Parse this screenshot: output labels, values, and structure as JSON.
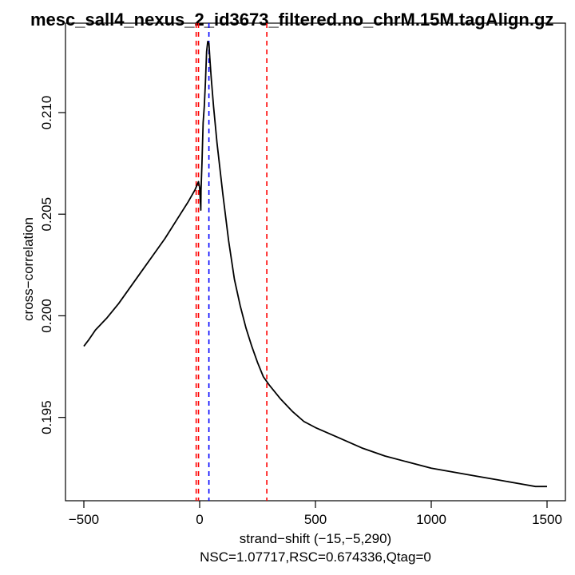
{
  "chart_data": {
    "type": "line",
    "title": "mesc_sall4_nexus_2_id3673_filtered.no_chrM.15M.tagAlign.gz",
    "xlabel": "strand−shift (−15,−5,290)",
    "ylabel": "cross−correlation",
    "subtitle": "NSC=1.07717,RSC=0.674336,Qtag=0",
    "xlim": [
      -500,
      1500
    ],
    "ylim": [
      0.1909,
      0.2144
    ],
    "x_ticks": [
      -500,
      0,
      500,
      1000,
      1500
    ],
    "x_tick_labels": [
      "−500",
      "0",
      "500",
      "1000",
      "1500"
    ],
    "y_ticks": [
      0.195,
      0.2,
      0.205,
      0.21
    ],
    "y_tick_labels": [
      "0.195",
      "0.200",
      "0.205",
      "0.210"
    ],
    "series": [
      {
        "color": "#000000",
        "x": [
          -500,
          -480,
          -450,
          -400,
          -350,
          -300,
          -250,
          -200,
          -150,
          -100,
          -50,
          -20,
          -5,
          0,
          5,
          6,
          10,
          15,
          20,
          25,
          30,
          35,
          40,
          45,
          50,
          60,
          75,
          100,
          125,
          150,
          175,
          200,
          225,
          250,
          275,
          300,
          350,
          400,
          450,
          500,
          600,
          700,
          800,
          900,
          1000,
          1100,
          1200,
          1300,
          1400,
          1450,
          1500
        ],
        "y": [
          0.1985,
          0.1988,
          0.1993,
          0.1999,
          0.2006,
          0.2014,
          0.2022,
          0.203,
          0.2038,
          0.2047,
          0.2056,
          0.2062,
          0.2066,
          0.2063,
          0.2052,
          0.2062,
          0.2075,
          0.2095,
          0.2103,
          0.2115,
          0.213,
          0.2135,
          0.2134,
          0.2125,
          0.2117,
          0.2103,
          0.2085,
          0.206,
          0.2037,
          0.2018,
          0.2005,
          0.1994,
          0.1985,
          0.1977,
          0.197,
          0.1966,
          0.1959,
          0.1953,
          0.1948,
          0.1945,
          0.194,
          0.1935,
          0.1931,
          0.1928,
          0.1925,
          0.1923,
          0.1921,
          0.1919,
          0.1917,
          0.1916,
          0.1916
        ]
      }
    ],
    "vlines": [
      {
        "x": -15,
        "color": "#ff0000"
      },
      {
        "x": -5,
        "color": "#ff0000"
      },
      {
        "x": 290,
        "color": "#ff0000"
      },
      {
        "x": 40,
        "color": "#0000ff"
      }
    ],
    "grid": false,
    "legend": "none"
  }
}
